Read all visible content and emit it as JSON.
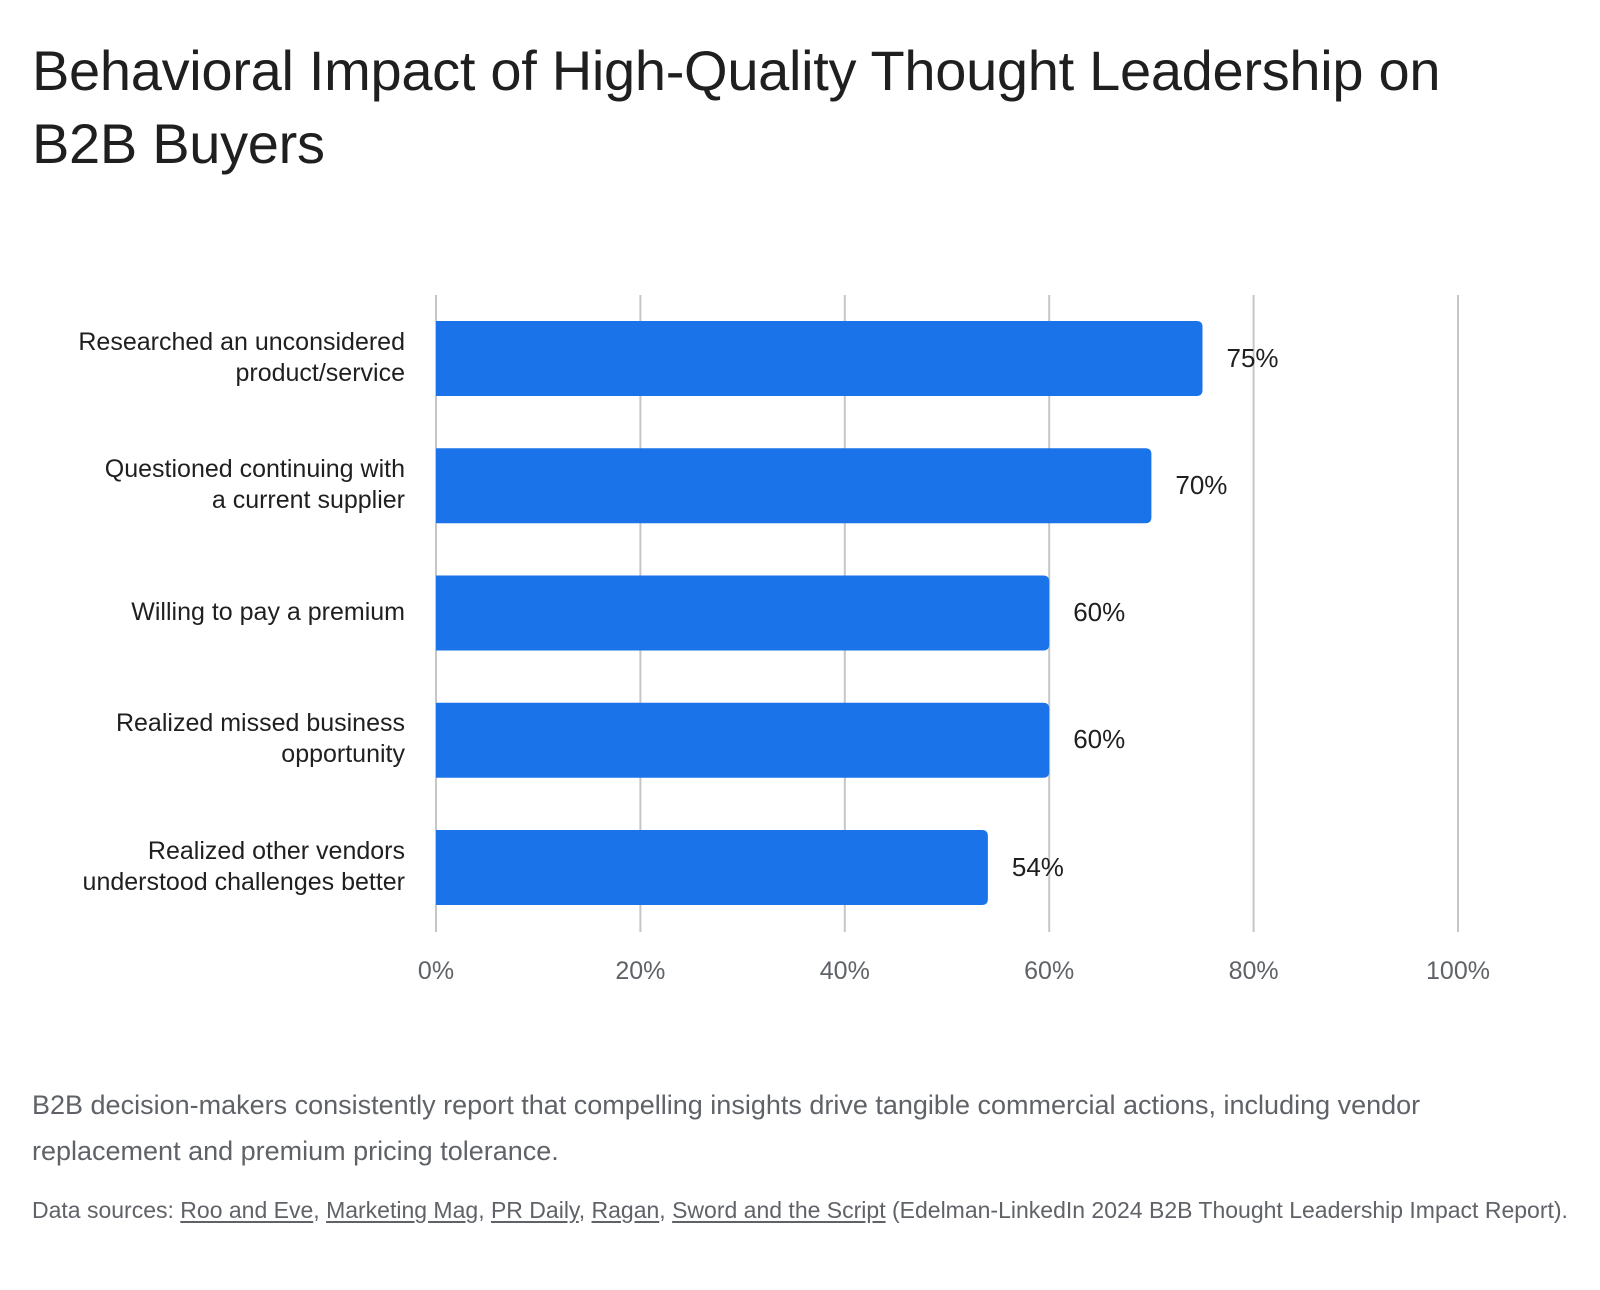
{
  "title": "Behavioral Impact of High-Quality Thought Leadership on B2B Buyers",
  "caption": "B2B decision-makers consistently report that compelling insights drive tangible commercial actions, including vendor replacement and premium pricing tolerance.",
  "sources": {
    "prefix": "Data sources: ",
    "links": [
      "Roo and Eve",
      "Marketing Mag",
      "PR Daily",
      "Ragan",
      "Sword and the Script"
    ],
    "separator": ", ",
    "suffix": " (Edelman-LinkedIn 2024 B2B Thought Leadership Impact Report)."
  },
  "colors": {
    "bar": "#1a73e8",
    "grid": "#c6c6c6",
    "text": "#1f1f1f",
    "muted": "#5f6368"
  },
  "chart_data": {
    "type": "bar",
    "orientation": "horizontal",
    "categories": [
      [
        "Researched an unconsidered",
        "product/service"
      ],
      [
        "Questioned continuing with",
        "a current supplier"
      ],
      [
        "Willing to pay a premium"
      ],
      [
        "Realized missed business",
        "opportunity"
      ],
      [
        "Realized other vendors",
        "understood challenges better"
      ]
    ],
    "values": [
      75,
      70,
      60,
      60,
      54
    ],
    "value_labels": [
      "75%",
      "70%",
      "60%",
      "60%",
      "54%"
    ],
    "xlim": [
      0,
      100
    ],
    "xticks": [
      0,
      20,
      40,
      60,
      80,
      100
    ],
    "xtick_labels": [
      "0%",
      "20%",
      "40%",
      "60%",
      "80%",
      "100%"
    ],
    "grid": true,
    "legend": "none"
  }
}
